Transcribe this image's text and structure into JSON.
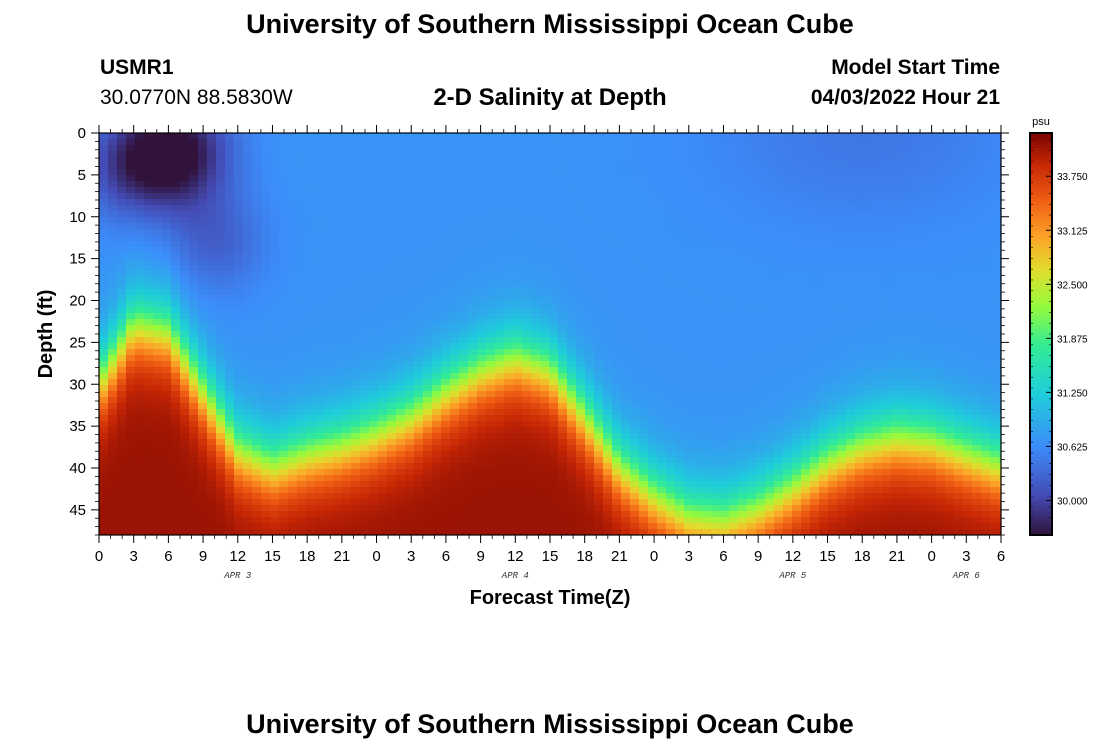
{
  "header": {
    "title": "University of Southern Mississippi Ocean Cube",
    "station": "USMR1",
    "coords": "30.0770N  88.5830W",
    "subtitle": "2-D Salinity at Depth",
    "start_label": "Model Start Time",
    "start_value": "04/03/2022 Hour 21"
  },
  "footer": {
    "title": "University of Southern Mississippi Ocean Cube"
  },
  "chart_data": {
    "type": "heatmap",
    "title": "2-D Salinity at Depth",
    "xlabel": "Forecast Time(Z)",
    "ylabel": "Depth (ft)",
    "x_range_hours": [
      0,
      78
    ],
    "x_tick_labels": [
      "0",
      "3",
      "6",
      "9",
      "12",
      "15",
      "18",
      "21",
      "0",
      "3",
      "6",
      "9",
      "12",
      "15",
      "18",
      "21",
      "0",
      "3",
      "6",
      "9",
      "12",
      "15",
      "18",
      "21",
      "0",
      "3",
      "6"
    ],
    "date_labels": [
      {
        "text": "APR 3",
        "hour": 12
      },
      {
        "text": "APR 4",
        "hour": 36
      },
      {
        "text": "APR 5",
        "hour": 60
      },
      {
        "text": "APR 6",
        "hour": 75
      }
    ],
    "y_range_ft": [
      0,
      48
    ],
    "y_ticks": [
      "0",
      "5",
      "10",
      "15",
      "20",
      "25",
      "30",
      "35",
      "40",
      "45"
    ],
    "colorbar": {
      "unit": "psu",
      "range": [
        29.6,
        34.25
      ],
      "ticks": [
        "33.750",
        "33.125",
        "32.500",
        "31.875",
        "31.250",
        "30.625",
        "30.000"
      ]
    },
    "surface_layer_salinity_psu": 30.7,
    "bottom_layer_salinity_psu": 34.1,
    "halocline_depth_ft": {
      "hours": [
        0,
        3,
        6,
        9,
        12,
        15,
        18,
        21,
        24,
        27,
        30,
        33,
        36,
        39,
        42,
        45,
        48,
        51,
        54,
        57,
        60,
        63,
        66,
        69,
        72,
        75,
        78
      ],
      "depth": [
        30,
        23,
        24,
        31,
        38,
        40,
        38.5,
        37.5,
        36,
        34,
        31,
        28.5,
        27,
        28.5,
        34,
        40,
        43.5,
        46,
        46.5,
        45,
        42.5,
        39.5,
        37.5,
        36.5,
        37,
        38.5,
        40
      ]
    },
    "low_salinity_patches": [
      {
        "hour": 3,
        "depth_ft": 4,
        "salinity_psu": 29.95
      },
      {
        "hour": 7,
        "depth_ft": 2,
        "salinity_psu": 29.7
      },
      {
        "hour": 10,
        "depth_ft": 13,
        "salinity_psu": 30.25
      }
    ]
  }
}
